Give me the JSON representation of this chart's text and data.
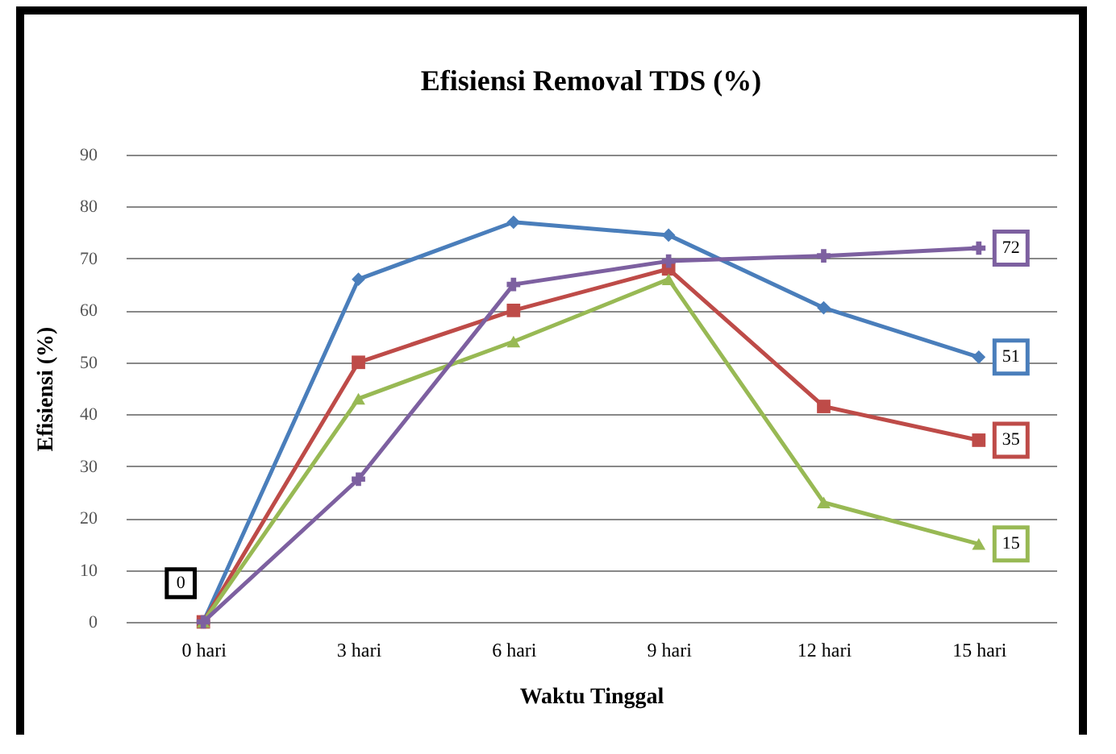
{
  "chart_data": {
    "type": "line",
    "title": "Efisiensi Removal TDS (%)",
    "xlabel": "Waktu Tinggal",
    "ylabel": "Efisiensi (%)",
    "categories": [
      "0 hari",
      "3 hari",
      "6 hari",
      "9 hari",
      "12 hari",
      "15 hari"
    ],
    "ylim": [
      0,
      90
    ],
    "yticks": [
      0,
      10,
      20,
      30,
      40,
      50,
      60,
      70,
      80,
      90
    ],
    "grid": "y",
    "series": [
      {
        "color": "#4a7ebb",
        "marker": "diamond",
        "values": [
          0,
          66,
          77,
          74.5,
          60.5,
          51
        ],
        "value_labels": [
          null,
          null,
          null,
          null,
          null,
          "51"
        ]
      },
      {
        "color": "#be4b48",
        "marker": "square",
        "values": [
          0,
          50,
          60,
          68,
          41.5,
          35
        ],
        "value_labels": [
          null,
          null,
          null,
          null,
          null,
          "35"
        ]
      },
      {
        "color": "#98b954",
        "marker": "triangle",
        "values": [
          0,
          43,
          54,
          66,
          23,
          15
        ],
        "value_labels": [
          null,
          null,
          null,
          null,
          null,
          "15"
        ]
      },
      {
        "color": "#7d60a0",
        "marker": "cross",
        "values": [
          0,
          27.5,
          65,
          69.5,
          70.5,
          72
        ],
        "value_labels": [
          null,
          null,
          null,
          null,
          null,
          "72"
        ]
      }
    ],
    "annotations": [
      {
        "text": "0",
        "x": "0 hari",
        "y": 0
      }
    ]
  }
}
